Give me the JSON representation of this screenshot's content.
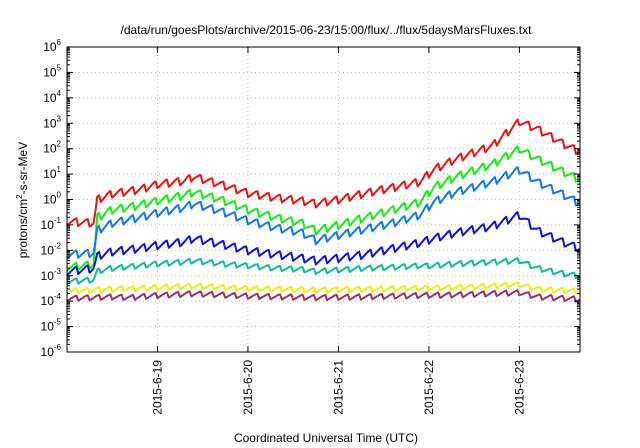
{
  "chart_data": {
    "type": "line",
    "title": "/data/run/goesPlots/archive/2015-06-23/15:00/flux/../flux/5daysMarsFluxes.txt",
    "xlabel": "Coordinated Universal Time (UTC)",
    "ylabel": {
      "prefix": "protons/cm",
      "sup": "2",
      "suffix": "-s-sr-MeV"
    },
    "yscale": "log",
    "ylim_exp": [
      -6,
      6
    ],
    "y_ticks": [
      {
        "base": "10",
        "exp": "6"
      },
      {
        "base": "10",
        "exp": "5"
      },
      {
        "base": "10",
        "exp": "4"
      },
      {
        "base": "10",
        "exp": "3"
      },
      {
        "base": "10",
        "exp": "2"
      },
      {
        "base": "10",
        "exp": "1"
      },
      {
        "base": "10",
        "exp": "0"
      },
      {
        "base": "10",
        "exp": "-1"
      },
      {
        "base": "10",
        "exp": "-2"
      },
      {
        "base": "10",
        "exp": "-3"
      },
      {
        "base": "10",
        "exp": "-4"
      },
      {
        "base": "10",
        "exp": "-5"
      },
      {
        "base": "10",
        "exp": "-6"
      }
    ],
    "x_range_days": [
      0,
      5.67
    ],
    "x_ticks": [
      {
        "label": "2015-6-19",
        "day": 1.0
      },
      {
        "label": "2015-6-20",
        "day": 2.0
      },
      {
        "label": "2015-6-21",
        "day": 3.0
      },
      {
        "label": "2015-6-22",
        "day": 4.0
      },
      {
        "label": "2015-6-23",
        "day": 5.0
      }
    ],
    "grid": true,
    "sawtooth_period_days": 0.125,
    "series": [
      {
        "color": "#ee1111",
        "points": [
          [
            0,
            0.14
          ],
          [
            0.3,
            0.12
          ],
          [
            0.33,
            1.0
          ],
          [
            0.5,
            1.7
          ],
          [
            0.8,
            2.5
          ],
          [
            1.0,
            4.0
          ],
          [
            1.3,
            5.5
          ],
          [
            1.4,
            8.0
          ],
          [
            1.7,
            4.0
          ],
          [
            2.0,
            1.8
          ],
          [
            2.3,
            1.2
          ],
          [
            2.6,
            0.9
          ],
          [
            2.75,
            0.7
          ],
          [
            3.0,
            1.0
          ],
          [
            3.3,
            1.8
          ],
          [
            3.6,
            3.0
          ],
          [
            3.9,
            5.0
          ],
          [
            4.05,
            15
          ],
          [
            4.3,
            40
          ],
          [
            4.7,
            130
          ],
          [
            5.0,
            1200
          ],
          [
            5.2,
            600
          ],
          [
            5.5,
            150
          ],
          [
            5.67,
            75
          ]
        ]
      },
      {
        "color": "#11ee11",
        "points": [
          [
            0,
            0.0022
          ],
          [
            0.3,
            0.0028
          ],
          [
            0.33,
            0.2
          ],
          [
            0.5,
            0.4
          ],
          [
            0.8,
            0.6
          ],
          [
            1.0,
            0.9
          ],
          [
            1.3,
            1.5
          ],
          [
            1.4,
            2.0
          ],
          [
            1.7,
            1.0
          ],
          [
            2.0,
            0.4
          ],
          [
            2.3,
            0.2
          ],
          [
            2.6,
            0.12
          ],
          [
            2.75,
            0.06
          ],
          [
            3.0,
            0.1
          ],
          [
            3.3,
            0.2
          ],
          [
            3.6,
            0.4
          ],
          [
            3.9,
            0.8
          ],
          [
            4.05,
            3.0
          ],
          [
            4.3,
            8.0
          ],
          [
            4.7,
            25
          ],
          [
            5.0,
            100
          ],
          [
            5.2,
            40
          ],
          [
            5.5,
            12
          ],
          [
            5.67,
            6
          ]
        ]
      },
      {
        "color": "#1177ee",
        "points": [
          [
            0,
            0.007
          ],
          [
            0.3,
            0.008
          ],
          [
            0.33,
            0.06
          ],
          [
            0.5,
            0.12
          ],
          [
            0.8,
            0.2
          ],
          [
            1.0,
            0.3
          ],
          [
            1.3,
            0.5
          ],
          [
            1.4,
            0.7
          ],
          [
            1.7,
            0.35
          ],
          [
            2.0,
            0.15
          ],
          [
            2.3,
            0.08
          ],
          [
            2.6,
            0.05
          ],
          [
            2.75,
            0.025
          ],
          [
            3.0,
            0.04
          ],
          [
            3.3,
            0.07
          ],
          [
            3.6,
            0.12
          ],
          [
            3.9,
            0.25
          ],
          [
            4.05,
            0.8
          ],
          [
            4.3,
            2.0
          ],
          [
            4.7,
            5.0
          ],
          [
            5.0,
            15
          ],
          [
            5.2,
            5.0
          ],
          [
            5.5,
            1.5
          ],
          [
            5.67,
            0.7
          ]
        ]
      },
      {
        "color": "#1111dd",
        "points": [
          [
            0,
            0.0015
          ],
          [
            0.3,
            0.002
          ],
          [
            0.33,
            0.006
          ],
          [
            0.5,
            0.009
          ],
          [
            0.8,
            0.012
          ],
          [
            1.0,
            0.016
          ],
          [
            1.3,
            0.022
          ],
          [
            1.4,
            0.03
          ],
          [
            1.7,
            0.018
          ],
          [
            2.0,
            0.01
          ],
          [
            2.3,
            0.007
          ],
          [
            2.6,
            0.005
          ],
          [
            2.75,
            0.004
          ],
          [
            3.0,
            0.005
          ],
          [
            3.3,
            0.007
          ],
          [
            3.6,
            0.012
          ],
          [
            3.9,
            0.02
          ],
          [
            4.05,
            0.03
          ],
          [
            4.3,
            0.05
          ],
          [
            4.7,
            0.09
          ],
          [
            5.0,
            0.25
          ],
          [
            5.2,
            0.06
          ],
          [
            5.5,
            0.02
          ],
          [
            5.67,
            0.012
          ]
        ]
      },
      {
        "color": "#11bb99",
        "points": [
          [
            0,
            0.0006
          ],
          [
            0.3,
            0.0007
          ],
          [
            0.33,
            0.0015
          ],
          [
            0.5,
            0.002
          ],
          [
            0.8,
            0.0025
          ],
          [
            1.0,
            0.003
          ],
          [
            1.3,
            0.0035
          ],
          [
            1.4,
            0.004
          ],
          [
            1.7,
            0.003
          ],
          [
            2.0,
            0.0025
          ],
          [
            2.3,
            0.002
          ],
          [
            2.6,
            0.0018
          ],
          [
            2.75,
            0.0015
          ],
          [
            3.0,
            0.0017
          ],
          [
            3.3,
            0.002
          ],
          [
            3.6,
            0.0022
          ],
          [
            3.9,
            0.0025
          ],
          [
            4.05,
            0.0025
          ],
          [
            4.3,
            0.003
          ],
          [
            4.7,
            0.0035
          ],
          [
            5.0,
            0.004
          ],
          [
            5.2,
            0.002
          ],
          [
            5.5,
            0.0012
          ],
          [
            5.67,
            0.001
          ]
        ]
      },
      {
        "color": "#eeee11",
        "points": [
          [
            0,
            0.00025
          ],
          [
            0.5,
            0.0003
          ],
          [
            1.0,
            0.00035
          ],
          [
            1.4,
            0.0004
          ],
          [
            2.0,
            0.00032
          ],
          [
            2.75,
            0.00028
          ],
          [
            3.3,
            0.0003
          ],
          [
            3.9,
            0.00033
          ],
          [
            4.3,
            0.00035
          ],
          [
            4.7,
            0.0004
          ],
          [
            5.0,
            0.00045
          ],
          [
            5.2,
            0.0003
          ],
          [
            5.67,
            0.00025
          ]
        ]
      },
      {
        "color": "#993366",
        "points": [
          [
            0,
            0.00013
          ],
          [
            0.5,
            0.00015
          ],
          [
            0.7,
            0.00014
          ],
          [
            1.0,
            0.00017
          ],
          [
            1.4,
            0.0002
          ],
          [
            2.0,
            0.00016
          ],
          [
            2.75,
            0.00014
          ],
          [
            3.3,
            0.00015
          ],
          [
            3.9,
            0.00017
          ],
          [
            4.3,
            0.00018
          ],
          [
            4.7,
            0.0002
          ],
          [
            5.0,
            0.00022
          ],
          [
            5.2,
            0.00015
          ],
          [
            5.67,
            0.00012
          ]
        ]
      }
    ]
  }
}
